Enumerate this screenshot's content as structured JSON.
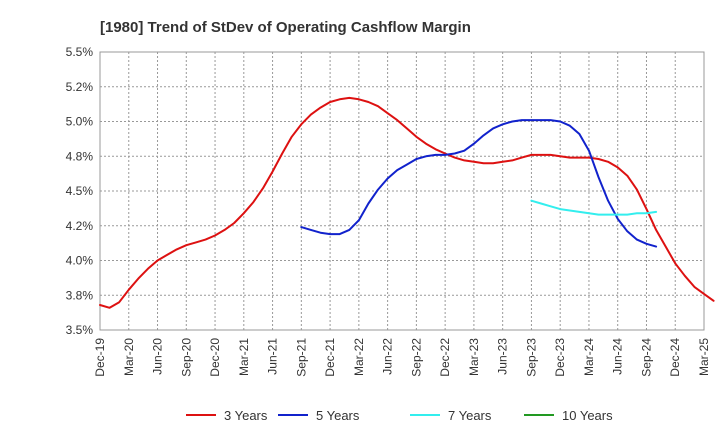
{
  "chart_data": {
    "type": "line",
    "title": "[1980]  Trend of StDev of Operating Cashflow Margin",
    "xlabel": "",
    "ylabel": "",
    "x_ticks": [
      "Dec-19",
      "Mar-20",
      "Jun-20",
      "Sep-20",
      "Dec-20",
      "Mar-21",
      "Jun-21",
      "Sep-21",
      "Dec-21",
      "Mar-22",
      "Jun-22",
      "Sep-22",
      "Dec-22",
      "Mar-23",
      "Jun-23",
      "Sep-23",
      "Dec-23",
      "Mar-24",
      "Jun-24",
      "Sep-24",
      "Dec-24",
      "Mar-25"
    ],
    "y_ticks": [
      "3.5%",
      "3.8%",
      "4.0%",
      "4.2%",
      "4.5%",
      "4.8%",
      "5.0%",
      "5.2%",
      "5.5%"
    ],
    "ylim": [
      3.5,
      5.5
    ],
    "grid": true,
    "legend_position": "bottom",
    "series": [
      {
        "name": "3 Years",
        "color": "#dd1111",
        "start_month": 0,
        "values": [
          3.68,
          3.66,
          3.7,
          3.79,
          3.87,
          3.94,
          4.0,
          4.04,
          4.08,
          4.11,
          4.13,
          4.15,
          4.18,
          4.22,
          4.27,
          4.34,
          4.42,
          4.52,
          4.64,
          4.77,
          4.89,
          4.98,
          5.05,
          5.1,
          5.14,
          5.16,
          5.17,
          5.16,
          5.14,
          5.11,
          5.06,
          5.01,
          4.95,
          4.89,
          4.84,
          4.8,
          4.77,
          4.74,
          4.72,
          4.71,
          4.7,
          4.7,
          4.71,
          4.72,
          4.74,
          4.76,
          4.76,
          4.76,
          4.75,
          4.74,
          4.74,
          4.74,
          4.73,
          4.71,
          4.67,
          4.61,
          4.51,
          4.37,
          4.22,
          4.1,
          3.98,
          3.89,
          3.81,
          3.76,
          3.71
        ]
      },
      {
        "name": "5 Years",
        "color": "#1122cc",
        "start_month": 21,
        "values": [
          4.24,
          4.22,
          4.2,
          4.19,
          4.19,
          4.22,
          4.29,
          4.41,
          4.51,
          4.59,
          4.65,
          4.69,
          4.73,
          4.75,
          4.76,
          4.76,
          4.77,
          4.79,
          4.84,
          4.9,
          4.95,
          4.98,
          5.0,
          5.01,
          5.01,
          5.01,
          5.01,
          5.0,
          4.97,
          4.91,
          4.79,
          4.6,
          4.43,
          4.3,
          4.21,
          4.15,
          4.12,
          4.1
        ]
      },
      {
        "name": "7 Years",
        "color": "#33eeee",
        "start_month": 45,
        "values": [
          4.43,
          4.41,
          4.39,
          4.37,
          4.36,
          4.35,
          4.34,
          4.33,
          4.33,
          4.33,
          4.33,
          4.34,
          4.34,
          4.35
        ]
      },
      {
        "name": "10 Years",
        "color": "#229922",
        "start_month": 0,
        "values": []
      }
    ]
  }
}
